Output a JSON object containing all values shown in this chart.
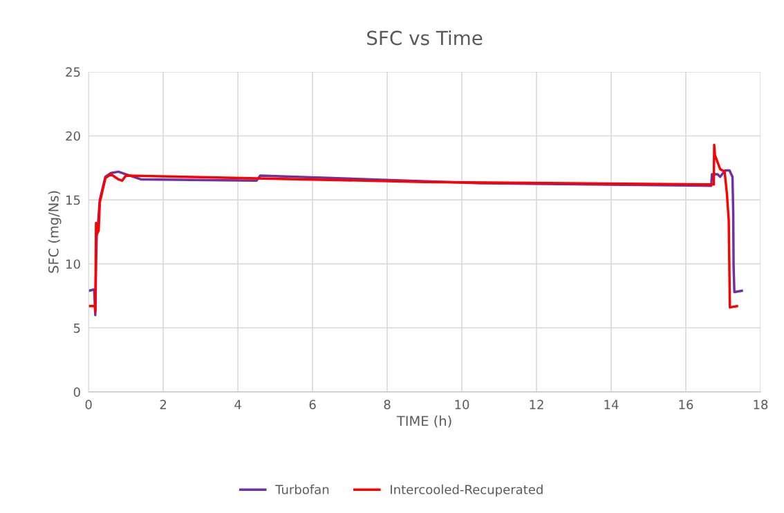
{
  "chart_data": {
    "type": "line",
    "title": "SFC vs Time",
    "xlabel": "TIME (h)",
    "ylabel": "SFC (mg/Ns)",
    "xlim": [
      0,
      18
    ],
    "xticks": [
      0,
      2,
      4,
      6,
      8,
      10,
      12,
      14,
      16,
      18
    ],
    "ylim": [
      0,
      25
    ],
    "yticks": [
      0,
      5,
      10,
      15,
      20,
      25
    ],
    "grid": true,
    "legend": "bottom",
    "marker": "none",
    "line_style": "solid",
    "series": [
      {
        "name": "Turbofan",
        "color": "#7030a0",
        "x": [
          0,
          0.15,
          0.18,
          0.2,
          0.22,
          0.25,
          0.3,
          0.45,
          0.6,
          0.8,
          1.0,
          1.4,
          4.5,
          4.6,
          10.5,
          16.68,
          16.7,
          16.85,
          16.92,
          17.05,
          17.17,
          17.25,
          17.27,
          17.28,
          17.3,
          17.5
        ],
        "values": [
          7.9,
          8.0,
          6.0,
          10,
          12.5,
          13.0,
          15.0,
          16.8,
          17.1,
          17.2,
          17.0,
          16.6,
          16.5,
          16.9,
          16.3,
          16.1,
          17.0,
          17.0,
          16.8,
          17.3,
          17.3,
          16.8,
          14.0,
          9.8,
          7.8,
          7.9
        ]
      },
      {
        "name": "Intercooled-Recuperated",
        "color": "#ff0000",
        "x": [
          0,
          0.17,
          0.18,
          0.2,
          0.22,
          0.27,
          0.3,
          0.45,
          0.6,
          0.8,
          0.9,
          1.0,
          9,
          16.75,
          16.76,
          16.78,
          16.92,
          17.04,
          17.1,
          17.15,
          17.18,
          17.37
        ],
        "values": [
          6.7,
          6.7,
          6.3,
          13.2,
          12.3,
          12.6,
          14.8,
          16.7,
          17.0,
          16.6,
          16.5,
          16.9,
          16.4,
          16.2,
          19.3,
          18.5,
          17.4,
          17.2,
          15.5,
          13.4,
          6.6,
          6.7
        ]
      }
    ]
  }
}
